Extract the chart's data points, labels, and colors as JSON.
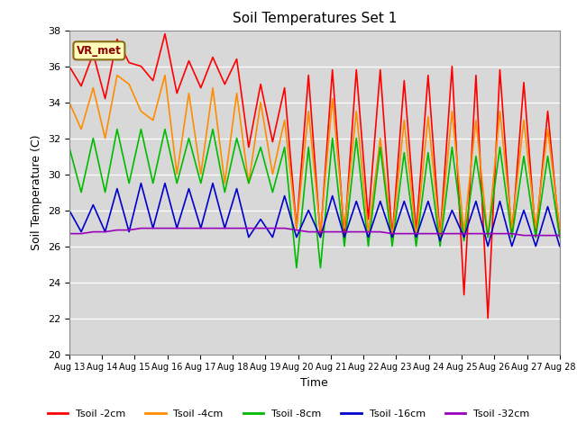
{
  "title": "Soil Temperatures Set 1",
  "xlabel": "Time",
  "ylabel": "Soil Temperature (C)",
  "ylim": [
    20,
    38
  ],
  "yticks": [
    20,
    22,
    24,
    26,
    28,
    30,
    32,
    34,
    36,
    38
  ],
  "annotation": "VR_met",
  "fig_bg": "#ffffff",
  "plot_bg": "#d8d8d8",
  "series_colors": {
    "Tsoil -2cm": "#ff0000",
    "Tsoil -4cm": "#ff8c00",
    "Tsoil -8cm": "#00bb00",
    "Tsoil -16cm": "#0000cc",
    "Tsoil -32cm": "#9900bb"
  },
  "x_labels": [
    "Aug 13",
    "Aug 14",
    "Aug 15",
    "Aug 16",
    "Aug 17",
    "Aug 18",
    "Aug 19",
    "Aug 20",
    "Aug 21",
    "Aug 22",
    "Aug 23",
    "Aug 24",
    "Aug 25",
    "Aug 26",
    "Aug 27",
    "Aug 28"
  ],
  "t2cm": [
    36.0,
    34.9,
    36.7,
    34.2,
    37.5,
    36.2,
    36.0,
    35.2,
    37.8,
    34.5,
    36.3,
    34.8,
    36.5,
    35.0,
    36.4,
    31.5,
    35.0,
    31.8,
    34.8,
    27.0,
    35.5,
    26.5,
    35.8,
    26.5,
    35.8,
    27.5,
    35.8,
    26.5,
    35.2,
    26.8,
    35.5,
    26.5,
    36.0,
    23.3,
    35.5,
    22.0,
    35.8,
    26.5,
    35.1,
    26.5,
    33.5,
    26.5
  ],
  "t4cm": [
    34.0,
    32.5,
    34.8,
    32.0,
    35.5,
    35.0,
    33.5,
    33.0,
    35.5,
    30.0,
    34.5,
    30.0,
    34.8,
    29.5,
    34.5,
    29.5,
    34.0,
    30.0,
    33.0,
    27.0,
    33.5,
    26.8,
    34.2,
    27.0,
    33.5,
    26.8,
    32.0,
    26.5,
    33.0,
    26.5,
    33.2,
    26.5,
    33.5,
    26.8,
    33.0,
    26.5,
    33.5,
    27.0,
    33.0,
    27.0,
    32.5,
    27.0
  ],
  "t8cm": [
    31.5,
    29.0,
    32.0,
    29.0,
    32.5,
    29.5,
    32.5,
    29.5,
    32.5,
    29.5,
    32.0,
    29.5,
    32.5,
    29.0,
    32.0,
    29.5,
    31.5,
    29.0,
    31.5,
    24.8,
    31.5,
    24.8,
    32.0,
    26.0,
    32.0,
    26.0,
    31.5,
    26.0,
    31.2,
    26.0,
    31.2,
    26.0,
    31.5,
    26.3,
    31.0,
    26.5,
    31.5,
    26.5,
    31.0,
    26.5,
    31.0,
    26.5
  ],
  "t16cm": [
    28.0,
    26.8,
    28.3,
    26.8,
    29.2,
    26.8,
    29.5,
    27.0,
    29.5,
    27.0,
    29.2,
    27.0,
    29.5,
    27.0,
    29.2,
    26.5,
    27.5,
    26.5,
    28.8,
    26.5,
    28.0,
    26.5,
    28.8,
    26.5,
    28.5,
    26.5,
    28.5,
    26.5,
    28.5,
    26.5,
    28.5,
    26.3,
    28.0,
    26.5,
    28.5,
    26.0,
    28.5,
    26.0,
    28.0,
    26.0,
    28.2,
    26.0
  ],
  "t32cm": [
    26.7,
    26.7,
    26.8,
    26.8,
    26.9,
    26.9,
    27.0,
    27.0,
    27.0,
    27.0,
    27.0,
    27.0,
    27.0,
    27.0,
    27.0,
    27.0,
    27.0,
    27.0,
    27.0,
    26.9,
    26.8,
    26.8,
    26.8,
    26.8,
    26.8,
    26.8,
    26.8,
    26.7,
    26.7,
    26.7,
    26.7,
    26.7,
    26.7,
    26.7,
    26.7,
    26.7,
    26.7,
    26.7,
    26.6,
    26.6,
    26.6,
    26.6
  ]
}
